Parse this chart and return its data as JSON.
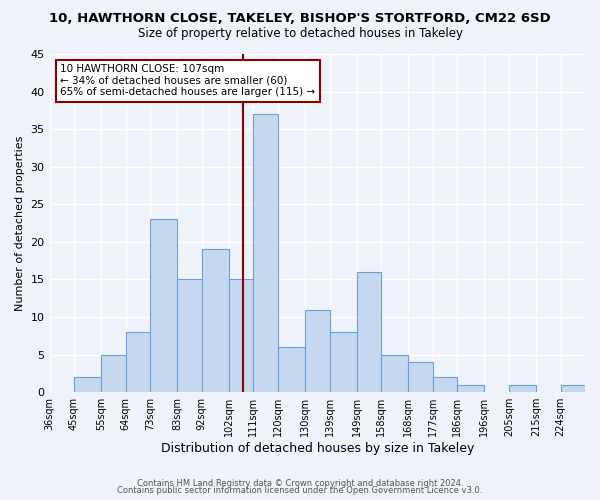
{
  "title": "10, HAWTHORN CLOSE, TAKELEY, BISHOP'S STORTFORD, CM22 6SD",
  "subtitle": "Size of property relative to detached houses in Takeley",
  "xlabel": "Distribution of detached houses by size in Takeley",
  "ylabel": "Number of detached properties",
  "bin_labels": [
    "36sqm",
    "45sqm",
    "55sqm",
    "64sqm",
    "73sqm",
    "83sqm",
    "92sqm",
    "102sqm",
    "111sqm",
    "120sqm",
    "130sqm",
    "139sqm",
    "149sqm",
    "158sqm",
    "168sqm",
    "177sqm",
    "186sqm",
    "196sqm",
    "205sqm",
    "215sqm",
    "224sqm"
  ],
  "bin_edges": [
    36,
    45,
    55,
    64,
    73,
    83,
    92,
    102,
    111,
    120,
    130,
    139,
    149,
    158,
    168,
    177,
    186,
    196,
    205,
    215,
    224,
    233
  ],
  "bar_heights": [
    0,
    2,
    5,
    8,
    23,
    15,
    19,
    15,
    37,
    6,
    11,
    8,
    16,
    5,
    4,
    2,
    1,
    0,
    1,
    0,
    1
  ],
  "bar_color": "#c5d8f0",
  "bar_edgecolor": "#6a9fd8",
  "vline_x": 107,
  "vline_color": "#8b0000",
  "annotation_text_line1": "10 HAWTHORN CLOSE: 107sqm",
  "annotation_text_line2": "← 34% of detached houses are smaller (60)",
  "annotation_text_line3": "65% of semi-detached houses are larger (115) →",
  "annotation_box_edgecolor": "#8b0000",
  "annotation_box_facecolor": "#ffffff",
  "ylim": [
    0,
    45
  ],
  "yticks": [
    0,
    5,
    10,
    15,
    20,
    25,
    30,
    35,
    40,
    45
  ],
  "bg_color": "#eef2f9",
  "grid_color": "#ffffff",
  "footer_line1": "Contains HM Land Registry data © Crown copyright and database right 2024.",
  "footer_line2": "Contains public sector information licensed under the Open Government Licence v3.0."
}
